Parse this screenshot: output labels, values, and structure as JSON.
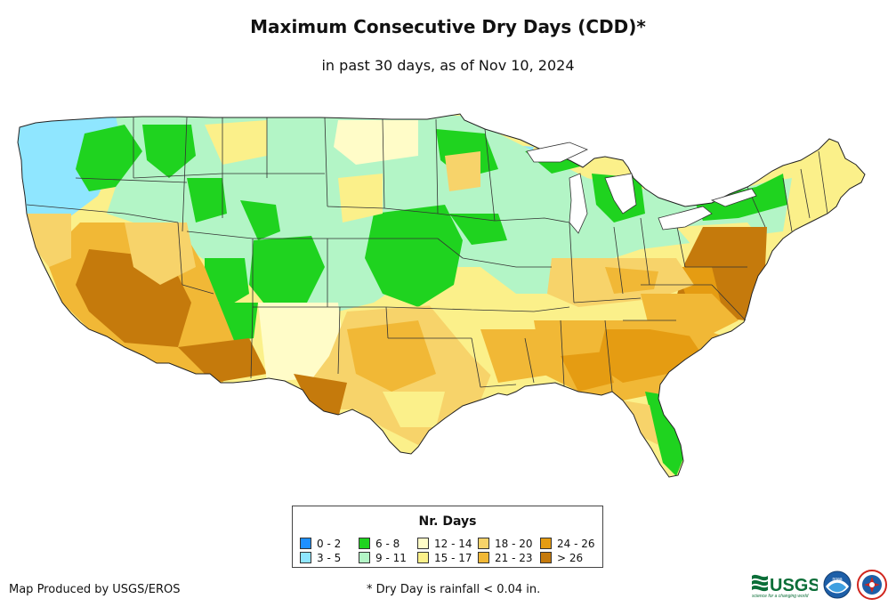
{
  "map": {
    "title": "Maximum Consecutive Dry Days (CDD)*",
    "subtitle": "in past 30 days, as of Nov 10, 2024",
    "region": "Contiguous United States",
    "legend": {
      "title": "Nr. Days",
      "classes": [
        {
          "label": "0 - 2",
          "color": "#1e90ff"
        },
        {
          "label": "3 - 5",
          "color": "#8fe6ff"
        },
        {
          "label": "6 - 8",
          "color": "#1fd31f"
        },
        {
          "label": "9 - 11",
          "color": "#b3f5c6"
        },
        {
          "label": "12 - 14",
          "color": "#fffcc8"
        },
        {
          "label": "15 - 17",
          "color": "#fbf08a"
        },
        {
          "label": "18 - 20",
          "color": "#f7d36a"
        },
        {
          "label": "21 - 23",
          "color": "#f1b836"
        },
        {
          "label": "24 - 26",
          "color": "#e59c12"
        },
        {
          "label": "> 26",
          "color": "#c57a0c"
        }
      ]
    }
  },
  "footer": {
    "credit": "Map Produced by USGS/EROS",
    "footnote": "* Dry Day is rainfall < 0.04 in."
  },
  "logos": {
    "usgs_text": "USGS",
    "usgs_tagline": "science for a changing world",
    "noaa_text": "noaa",
    "nws_icon": "nws-seal-icon"
  }
}
